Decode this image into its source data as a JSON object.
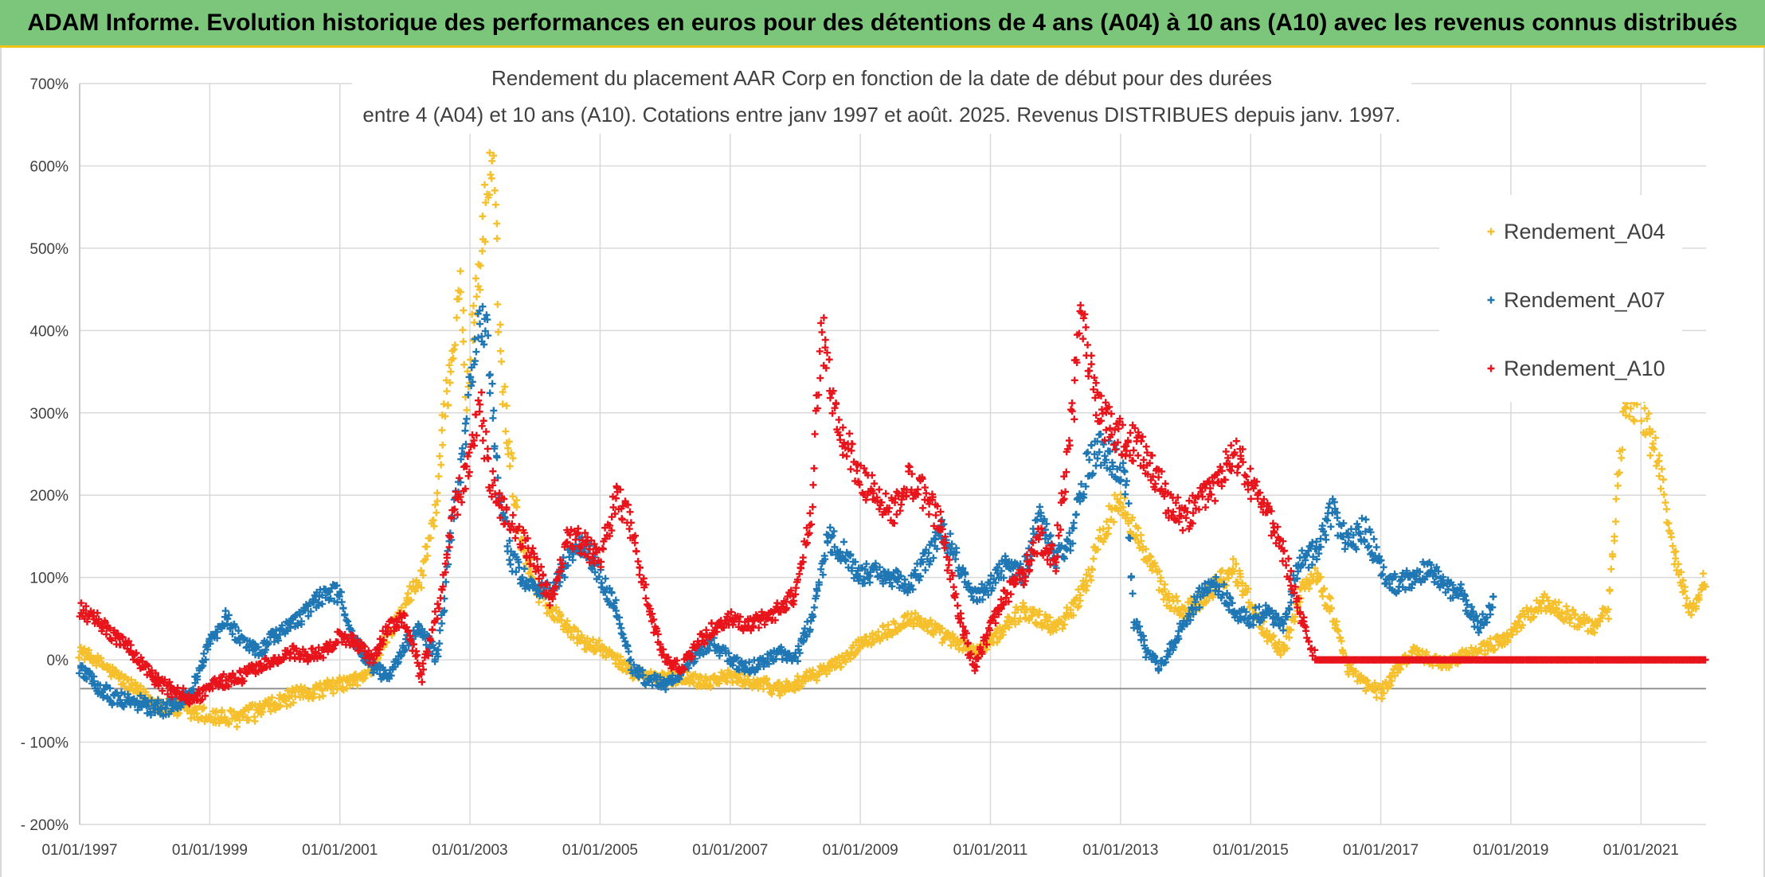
{
  "header": {
    "banner": "ADAM Informe. Evolution historique des performances en euros pour des détentions de 4 ans (A04) à 10 ans (A10) avec les revenus connus distribués"
  },
  "chart_data": {
    "type": "scatter",
    "title_line1": "Rendement du placement AAR Corp en fonction de la date de début pour des durées",
    "title_line2": "entre 4 (A04) et 10 ans (A10). Cotations entre janv 1997 et août. 2025. Revenus DISTRIBUES depuis janv. 1997.",
    "xlabel": "",
    "ylabel": "",
    "x_range": [
      "1997-01-01",
      "2022-01-01"
    ],
    "ylim": [
      -200,
      700
    ],
    "y_ticks": [
      700,
      600,
      500,
      400,
      300,
      200,
      100,
      0,
      -100,
      -200
    ],
    "y_tick_labels": [
      "700%",
      "600%",
      "500%",
      "400%",
      "300%",
      "200%",
      "100%",
      "0%",
      "- 100%",
      "- 200%"
    ],
    "x_tick_years": [
      1997,
      1999,
      2001,
      2003,
      2005,
      2007,
      2009,
      2011,
      2013,
      2015,
      2017,
      2019,
      2021
    ],
    "x_tick_labels": [
      "01/01/1997",
      "01/01/1999",
      "01/01/2001",
      "01/01/2003",
      "01/01/2005",
      "01/01/2007",
      "01/01/2009",
      "01/01/2011",
      "01/01/2013",
      "01/01/2015",
      "01/01/2017",
      "01/01/2019",
      "01/01/2021"
    ],
    "grid": true,
    "legend_position": "right",
    "marker": "+",
    "series": [
      {
        "name": "Rendement_A04",
        "color": "#f5c02c",
        "points": [
          [
            1997.0,
            10
          ],
          [
            1997.25,
            0
          ],
          [
            1997.5,
            -15
          ],
          [
            1997.75,
            -30
          ],
          [
            1998.0,
            -45
          ],
          [
            1998.25,
            -55
          ],
          [
            1998.5,
            -60
          ],
          [
            1998.75,
            -65
          ],
          [
            1999.0,
            -68
          ],
          [
            1999.25,
            -72
          ],
          [
            1999.5,
            -70
          ],
          [
            1999.75,
            -62
          ],
          [
            2000.0,
            -55
          ],
          [
            2000.25,
            -45
          ],
          [
            2000.5,
            -40
          ],
          [
            2000.75,
            -35
          ],
          [
            2001.0,
            -30
          ],
          [
            2001.25,
            -25
          ],
          [
            2001.5,
            -10
          ],
          [
            2001.75,
            30
          ],
          [
            2002.0,
            70
          ],
          [
            2002.25,
            100
          ],
          [
            2002.5,
            200
          ],
          [
            2002.6,
            300
          ],
          [
            2002.75,
            380
          ],
          [
            2002.85,
            460
          ],
          [
            2002.95,
            320
          ],
          [
            2003.05,
            420
          ],
          [
            2003.15,
            470
          ],
          [
            2003.25,
            560
          ],
          [
            2003.35,
            600
          ],
          [
            2003.5,
            330
          ],
          [
            2003.75,
            160
          ],
          [
            2004.0,
            90
          ],
          [
            2004.25,
            60
          ],
          [
            2004.5,
            40
          ],
          [
            2004.75,
            20
          ],
          [
            2005.0,
            15
          ],
          [
            2005.25,
            0
          ],
          [
            2005.5,
            -15
          ],
          [
            2005.75,
            -20
          ],
          [
            2006.0,
            -25
          ],
          [
            2006.25,
            -20
          ],
          [
            2006.5,
            -25
          ],
          [
            2006.75,
            -25
          ],
          [
            2007.0,
            -20
          ],
          [
            2007.25,
            -25
          ],
          [
            2007.5,
            -30
          ],
          [
            2007.75,
            -35
          ],
          [
            2008.0,
            -30
          ],
          [
            2008.25,
            -20
          ],
          [
            2008.5,
            -10
          ],
          [
            2008.75,
            0
          ],
          [
            2009.0,
            20
          ],
          [
            2009.25,
            30
          ],
          [
            2009.5,
            40
          ],
          [
            2009.75,
            50
          ],
          [
            2010.0,
            45
          ],
          [
            2010.25,
            30
          ],
          [
            2010.5,
            20
          ],
          [
            2010.75,
            10
          ],
          [
            2011.0,
            20
          ],
          [
            2011.25,
            45
          ],
          [
            2011.5,
            60
          ],
          [
            2011.75,
            50
          ],
          [
            2012.0,
            40
          ],
          [
            2012.25,
            60
          ],
          [
            2012.5,
            100
          ],
          [
            2012.75,
            160
          ],
          [
            2013.0,
            200
          ],
          [
            2013.25,
            150
          ],
          [
            2013.5,
            110
          ],
          [
            2013.75,
            70
          ],
          [
            2014.0,
            60
          ],
          [
            2014.25,
            75
          ],
          [
            2014.5,
            95
          ],
          [
            2014.75,
            110
          ],
          [
            2015.0,
            70
          ],
          [
            2015.25,
            30
          ],
          [
            2015.5,
            10
          ],
          [
            2015.75,
            80
          ],
          [
            2016.0,
            100
          ],
          [
            2016.25,
            60
          ],
          [
            2016.5,
            -10
          ],
          [
            2016.75,
            -30
          ],
          [
            2017.0,
            -40
          ],
          [
            2017.25,
            -10
          ],
          [
            2017.5,
            10
          ],
          [
            2017.75,
            0
          ],
          [
            2018.0,
            -5
          ],
          [
            2018.25,
            5
          ],
          [
            2018.5,
            10
          ],
          [
            2018.75,
            20
          ],
          [
            2019.0,
            30
          ],
          [
            2019.25,
            55
          ],
          [
            2019.5,
            70
          ],
          [
            2019.75,
            60
          ],
          [
            2020.0,
            50
          ],
          [
            2020.25,
            40
          ],
          [
            2020.5,
            60
          ],
          [
            2020.75,
            320
          ],
          [
            2021.0,
            300
          ],
          [
            2021.25,
            250
          ],
          [
            2021.5,
            130
          ],
          [
            2021.75,
            60
          ],
          [
            2022.0,
            100
          ]
        ]
      },
      {
        "name": "Rendement_A07",
        "color": "#1f77b4",
        "points": [
          [
            1997.0,
            -10
          ],
          [
            1997.25,
            -30
          ],
          [
            1997.5,
            -45
          ],
          [
            1997.75,
            -50
          ],
          [
            1998.0,
            -55
          ],
          [
            1998.25,
            -60
          ],
          [
            1998.5,
            -55
          ],
          [
            1998.75,
            -30
          ],
          [
            1999.0,
            20
          ],
          [
            1999.25,
            50
          ],
          [
            1999.5,
            20
          ],
          [
            1999.75,
            10
          ],
          [
            2000.0,
            30
          ],
          [
            2000.25,
            40
          ],
          [
            2000.5,
            60
          ],
          [
            2000.75,
            80
          ],
          [
            2001.0,
            80
          ],
          [
            2001.25,
            20
          ],
          [
            2001.5,
            -10
          ],
          [
            2001.75,
            -20
          ],
          [
            2002.0,
            20
          ],
          [
            2002.25,
            40
          ],
          [
            2002.5,
            0
          ],
          [
            2002.75,
            180
          ],
          [
            2002.9,
            260
          ],
          [
            2003.0,
            330
          ],
          [
            2003.1,
            400
          ],
          [
            2003.25,
            420
          ],
          [
            2003.4,
            240
          ],
          [
            2003.6,
            130
          ],
          [
            2003.8,
            100
          ],
          [
            2004.0,
            90
          ],
          [
            2004.25,
            80
          ],
          [
            2004.5,
            120
          ],
          [
            2004.75,
            140
          ],
          [
            2005.0,
            100
          ],
          [
            2005.25,
            60
          ],
          [
            2005.5,
            -10
          ],
          [
            2005.75,
            -25
          ],
          [
            2006.0,
            -30
          ],
          [
            2006.25,
            -15
          ],
          [
            2006.5,
            10
          ],
          [
            2006.75,
            20
          ],
          [
            2007.0,
            0
          ],
          [
            2007.25,
            -10
          ],
          [
            2007.5,
            -5
          ],
          [
            2007.75,
            10
          ],
          [
            2008.0,
            0
          ],
          [
            2008.25,
            50
          ],
          [
            2008.5,
            150
          ],
          [
            2008.75,
            130
          ],
          [
            2009.0,
            100
          ],
          [
            2009.25,
            110
          ],
          [
            2009.5,
            100
          ],
          [
            2009.75,
            90
          ],
          [
            2010.0,
            120
          ],
          [
            2010.25,
            160
          ],
          [
            2010.5,
            120
          ],
          [
            2010.75,
            80
          ],
          [
            2011.0,
            90
          ],
          [
            2011.25,
            120
          ],
          [
            2011.5,
            100
          ],
          [
            2011.75,
            180
          ],
          [
            2012.0,
            120
          ],
          [
            2012.25,
            150
          ],
          [
            2012.5,
            240
          ],
          [
            2012.75,
            260
          ],
          [
            2013.0,
            230
          ],
          [
            2013.1,
            200
          ],
          [
            2013.2,
            50
          ],
          [
            2013.4,
            10
          ],
          [
            2013.6,
            -10
          ],
          [
            2013.8,
            20
          ],
          [
            2014.0,
            50
          ],
          [
            2014.25,
            80
          ],
          [
            2014.5,
            90
          ],
          [
            2014.75,
            60
          ],
          [
            2015.0,
            50
          ],
          [
            2015.25,
            60
          ],
          [
            2015.5,
            40
          ],
          [
            2015.75,
            120
          ],
          [
            2016.0,
            130
          ],
          [
            2016.25,
            180
          ],
          [
            2016.5,
            140
          ],
          [
            2016.75,
            160
          ],
          [
            2017.0,
            110
          ],
          [
            2017.25,
            90
          ],
          [
            2017.5,
            100
          ],
          [
            2017.75,
            110
          ],
          [
            2018.0,
            90
          ],
          [
            2018.25,
            80
          ],
          [
            2018.5,
            40
          ],
          [
            2018.75,
            70
          ]
        ]
      },
      {
        "name": "Rendement_A10",
        "color": "#e8141b",
        "points": [
          [
            1997.0,
            60
          ],
          [
            1997.25,
            50
          ],
          [
            1997.5,
            30
          ],
          [
            1997.75,
            15
          ],
          [
            1998.0,
            -10
          ],
          [
            1998.25,
            -30
          ],
          [
            1998.5,
            -40
          ],
          [
            1998.75,
            -50
          ],
          [
            1999.0,
            -30
          ],
          [
            1999.25,
            -25
          ],
          [
            1999.5,
            -20
          ],
          [
            1999.75,
            -10
          ],
          [
            2000.0,
            0
          ],
          [
            2000.25,
            10
          ],
          [
            2000.5,
            5
          ],
          [
            2000.75,
            10
          ],
          [
            2001.0,
            30
          ],
          [
            2001.25,
            20
          ],
          [
            2001.5,
            0
          ],
          [
            2001.75,
            40
          ],
          [
            2002.0,
            50
          ],
          [
            2002.25,
            -20
          ],
          [
            2002.5,
            60
          ],
          [
            2002.75,
            180
          ],
          [
            2003.0,
            240
          ],
          [
            2003.15,
            310
          ],
          [
            2003.3,
            220
          ],
          [
            2003.5,
            180
          ],
          [
            2003.75,
            150
          ],
          [
            2004.0,
            120
          ],
          [
            2004.25,
            70
          ],
          [
            2004.5,
            150
          ],
          [
            2004.75,
            140
          ],
          [
            2005.0,
            120
          ],
          [
            2005.25,
            200
          ],
          [
            2005.5,
            160
          ],
          [
            2005.75,
            60
          ],
          [
            2006.0,
            0
          ],
          [
            2006.25,
            -10
          ],
          [
            2006.5,
            20
          ],
          [
            2006.75,
            40
          ],
          [
            2007.0,
            50
          ],
          [
            2007.25,
            40
          ],
          [
            2007.5,
            50
          ],
          [
            2007.75,
            60
          ],
          [
            2008.0,
            80
          ],
          [
            2008.25,
            180
          ],
          [
            2008.4,
            400
          ],
          [
            2008.6,
            300
          ],
          [
            2008.8,
            260
          ],
          [
            2009.0,
            220
          ],
          [
            2009.25,
            200
          ],
          [
            2009.5,
            180
          ],
          [
            2009.75,
            220
          ],
          [
            2010.0,
            200
          ],
          [
            2010.25,
            160
          ],
          [
            2010.5,
            60
          ],
          [
            2010.75,
            -10
          ],
          [
            2011.0,
            40
          ],
          [
            2011.25,
            80
          ],
          [
            2011.5,
            100
          ],
          [
            2011.75,
            150
          ],
          [
            2012.0,
            120
          ],
          [
            2012.25,
            290
          ],
          [
            2012.4,
            430
          ],
          [
            2012.6,
            320
          ],
          [
            2012.75,
            290
          ],
          [
            2013.0,
            270
          ],
          [
            2013.25,
            260
          ],
          [
            2013.5,
            230
          ],
          [
            2013.75,
            190
          ],
          [
            2014.0,
            170
          ],
          [
            2014.25,
            200
          ],
          [
            2014.5,
            210
          ],
          [
            2014.75,
            260
          ],
          [
            2015.0,
            210
          ],
          [
            2015.25,
            180
          ],
          [
            2015.5,
            130
          ],
          [
            2015.75,
            60
          ],
          [
            2016.0,
            0
          ],
          [
            2017.0,
            0
          ],
          [
            2018.0,
            0
          ],
          [
            2019.0,
            0
          ],
          [
            2020.0,
            0
          ],
          [
            2021.0,
            0
          ],
          [
            2022.0,
            0
          ]
        ]
      }
    ]
  }
}
